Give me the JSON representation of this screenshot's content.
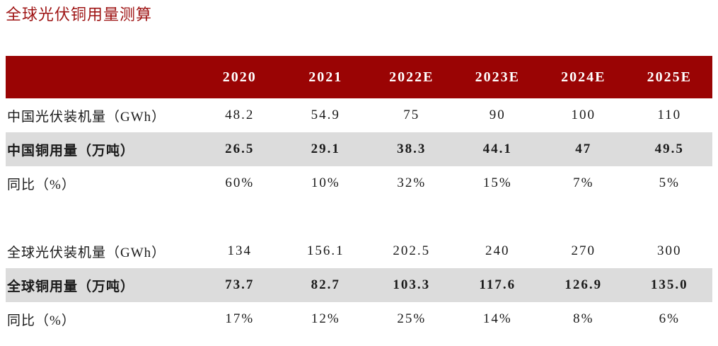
{
  "page_title": "全球光伏铜用量测算",
  "colors": {
    "header_bg": "#9a0404",
    "highlight_row_bg": "#dcdcdc",
    "title_color": "#9e1313",
    "header_text": "#ffffff",
    "body_text": "#1a1a1a"
  },
  "chart_data": {
    "type": "table",
    "title": "全球光伏铜用量测算",
    "columns": [
      "2020",
      "2021",
      "2022E",
      "2023E",
      "2024E",
      "2025E"
    ],
    "rows": [
      {
        "label": "中国光伏装机量（GWh）",
        "style": "normal",
        "values": [
          "48.2",
          "54.9",
          "75",
          "90",
          "100",
          "110"
        ]
      },
      {
        "label": "中国铜用量（万吨）",
        "style": "highlight",
        "values": [
          "26.5",
          "29.1",
          "38.3",
          "44.1",
          "47",
          "49.5"
        ]
      },
      {
        "label": "同比（%）",
        "style": "normal",
        "values": [
          "60%",
          "10%",
          "32%",
          "15%",
          "7%",
          "5%"
        ]
      },
      {
        "label": "",
        "style": "spacer",
        "values": [
          "",
          "",
          "",
          "",
          "",
          ""
        ]
      },
      {
        "label": "全球光伏装机量（GWh）",
        "style": "normal",
        "values": [
          "134",
          "156.1",
          "202.5",
          "240",
          "270",
          "300"
        ]
      },
      {
        "label": "全球铜用量（万吨）",
        "style": "highlight",
        "values": [
          "73.7",
          "82.7",
          "103.3",
          "117.6",
          "126.9",
          "135.0"
        ]
      },
      {
        "label": "同比（%）",
        "style": "normal",
        "values": [
          "17%",
          "12%",
          "25%",
          "14%",
          "8%",
          "6%"
        ]
      }
    ]
  }
}
